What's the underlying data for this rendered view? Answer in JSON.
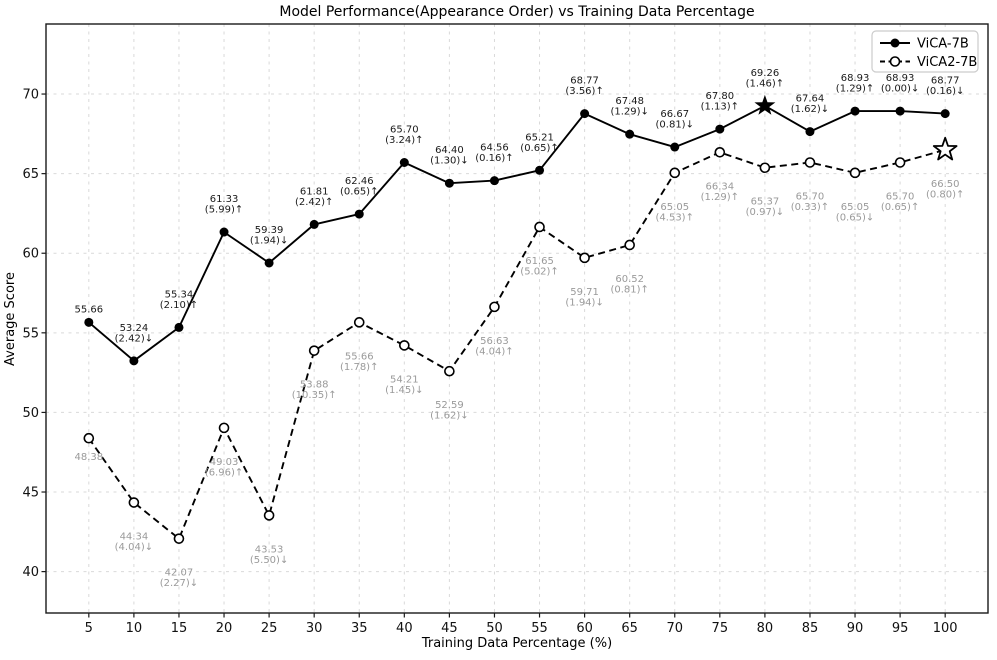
{
  "window": {
    "background": "#ffffff"
  },
  "chart_data": {
    "type": "line",
    "title": "Model Performance(Appearance Order) vs Training Data Percentage",
    "xlabel": "Training Data Percentage (%)",
    "ylabel": "Average Score",
    "x": [
      5,
      10,
      15,
      20,
      25,
      30,
      35,
      40,
      45,
      50,
      55,
      60,
      65,
      70,
      75,
      80,
      85,
      90,
      95,
      100
    ],
    "xticks": [
      5,
      10,
      15,
      20,
      25,
      30,
      35,
      40,
      45,
      50,
      55,
      60,
      65,
      70,
      75,
      80,
      85,
      90,
      95,
      100
    ],
    "yticks": [
      40,
      45,
      50,
      55,
      60,
      65,
      70
    ],
    "xlim": [
      0.25,
      104.75
    ],
    "ylim": [
      37.4,
      74.4
    ],
    "grid": true,
    "grid_color": "#d9d9d9",
    "axis_color": "#1a1a1a",
    "legend": {
      "position": "upper right",
      "items": [
        "ViCA-7B",
        "ViCA2-7B"
      ]
    },
    "series": [
      {
        "name": "ViCA-7B",
        "style": "solid",
        "marker": "filled-circle",
        "color": "#000000",
        "label_color": "#1a1a1a",
        "label_side": "above",
        "values": [
          55.66,
          53.24,
          55.34,
          61.33,
          59.39,
          61.81,
          62.46,
          65.7,
          64.4,
          64.56,
          65.21,
          68.77,
          67.48,
          66.67,
          67.8,
          69.26,
          67.64,
          68.93,
          68.93,
          68.77
        ],
        "labels": [
          [
            "55.66"
          ],
          [
            "53.24",
            "(2.42)↓"
          ],
          [
            "55.34",
            "(2.10)↑"
          ],
          [
            "61.33",
            "(5.99)↑"
          ],
          [
            "59.39",
            "(1.94)↓"
          ],
          [
            "61.81",
            "(2.42)↑"
          ],
          [
            "62.46",
            "(0.65)↑"
          ],
          [
            "65.70",
            "(3.24)↑"
          ],
          [
            "64.40",
            "(1.30)↓"
          ],
          [
            "64.56",
            "(0.16)↑"
          ],
          [
            "65.21",
            "(0.65)↑"
          ],
          [
            "68.77",
            "(3.56)↑"
          ],
          [
            "67.48",
            "(1.29)↓"
          ],
          [
            "66.67",
            "(0.81)↓"
          ],
          [
            "67.80",
            "(1.13)↑"
          ],
          [
            "69.26",
            "(1.46)↑"
          ],
          [
            "67.64",
            "(1.62)↓"
          ],
          [
            "68.93",
            "(1.29)↑"
          ],
          [
            "68.93",
            "(0.00)↓"
          ],
          [
            "68.77",
            "(0.16)↓"
          ]
        ],
        "special_marker": {
          "x": 80,
          "shape": "filled-star"
        }
      },
      {
        "name": "ViCA2-7B",
        "style": "dashed",
        "marker": "open-circle",
        "color": "#000000",
        "label_color": "#9a9a9a",
        "label_side": "below",
        "values": [
          48.38,
          44.34,
          42.07,
          49.03,
          43.53,
          53.88,
          55.66,
          54.21,
          52.59,
          56.63,
          61.65,
          59.71,
          60.52,
          65.05,
          66.34,
          65.37,
          65.7,
          65.05,
          65.7,
          66.5
        ],
        "labels": [
          [
            "48.38"
          ],
          [
            "44.34",
            "(4.04)↓"
          ],
          [
            "42.07",
            "(2.27)↓"
          ],
          [
            "49.03",
            "(6.96)↑"
          ],
          [
            "43.53",
            "(5.50)↓"
          ],
          [
            "53.88",
            "(10.35)↑"
          ],
          [
            "55.66",
            "(1.78)↑"
          ],
          [
            "54.21",
            "(1.45)↓"
          ],
          [
            "52.59",
            "(1.62)↓"
          ],
          [
            "56.63",
            "(4.04)↑"
          ],
          [
            "61.65",
            "(5.02)↑"
          ],
          [
            "59.71",
            "(1.94)↓"
          ],
          [
            "60.52",
            "(0.81)↑"
          ],
          [
            "65.05",
            "(4.53)↑"
          ],
          [
            "66.34",
            "(1.29)↑"
          ],
          [
            "65.37",
            "(0.97)↓"
          ],
          [
            "65.70",
            "(0.33)↑"
          ],
          [
            "65.05",
            "(0.65)↓"
          ],
          [
            "65.70",
            "(0.65)↑"
          ],
          [
            "66.50",
            "(0.80)↑"
          ]
        ],
        "special_marker": {
          "x": 100,
          "shape": "open-star"
        }
      }
    ]
  }
}
